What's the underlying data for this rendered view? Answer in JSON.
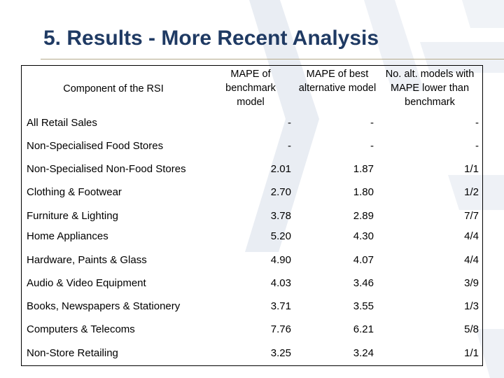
{
  "slide": {
    "title": "5. Results - More Recent Analysis"
  },
  "table": {
    "headers": [
      "Component of the RSI",
      "MAPE of benchmark model",
      "MAPE of best alternative model",
      "No. alt. models with MAPE lower than benchmark"
    ],
    "rows": [
      {
        "component": "All Retail Sales",
        "benchmark": "-",
        "best_alt": "-",
        "lower_count": "-"
      },
      {
        "component": "Non-Specialised Food Stores",
        "benchmark": "-",
        "best_alt": "-",
        "lower_count": "-"
      },
      {
        "component": "Non-Specialised Non-Food Stores",
        "benchmark": "2.01",
        "best_alt": "1.87",
        "lower_count": "1/1"
      },
      {
        "component": "Clothing & Footwear",
        "benchmark": "2.70",
        "best_alt": "1.80",
        "lower_count": "1/2"
      },
      {
        "component": "Furniture & Lighting",
        "benchmark": "3.78",
        "best_alt": "2.89",
        "lower_count": "7/7"
      },
      {
        "component": "Home Appliances",
        "benchmark": "5.20",
        "best_alt": "4.30",
        "lower_count": "4/4"
      },
      {
        "component": "Hardware, Paints & Glass",
        "benchmark": "4.90",
        "best_alt": "4.07",
        "lower_count": "4/4"
      },
      {
        "component": "Audio & Video Equipment",
        "benchmark": "4.03",
        "best_alt": "3.46",
        "lower_count": "3/9"
      },
      {
        "component": "Books, Newspapers & Stationery",
        "benchmark": "3.71",
        "best_alt": "3.55",
        "lower_count": "1/3"
      },
      {
        "component": "Computers & Telecoms",
        "benchmark": "7.76",
        "best_alt": "6.21",
        "lower_count": "5/8"
      },
      {
        "component": "Non-Store Retailing",
        "benchmark": "3.25",
        "best_alt": "3.24",
        "lower_count": "1/1"
      }
    ]
  },
  "colors": {
    "title": "#1f3a63",
    "rule": "#b4a98a",
    "watermark": "#e8edf3"
  }
}
